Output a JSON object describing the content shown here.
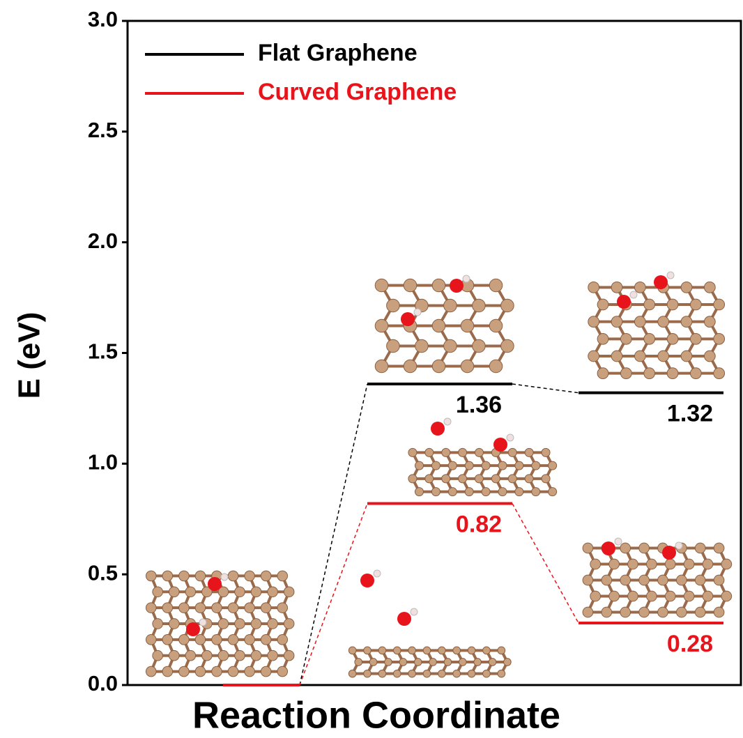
{
  "chart_data": {
    "type": "energy-diagram",
    "y_label": "E (eV)",
    "x_label": "Reaction Coordinate",
    "categories": [
      null,
      null,
      null
    ],
    "series": [
      {
        "name": "Flat Graphene",
        "color": "#000000",
        "values": [
          0,
          1.36,
          1.32
        ]
      },
      {
        "name": "Curved Graphene",
        "color": "#e8141b",
        "values": [
          0,
          0.82,
          0.28
        ]
      }
    ],
    "ylim": [
      0,
      3
    ],
    "yticks": [
      {
        "value": 0,
        "label": "0.0"
      },
      0.5,
      {
        "value": 1,
        "label": "1.0"
      },
      1.5,
      {
        "value": 2,
        "label": "2.0"
      },
      2.5,
      {
        "value": 3,
        "label": "3.0"
      }
    ],
    "legend": "upper left"
  }
}
